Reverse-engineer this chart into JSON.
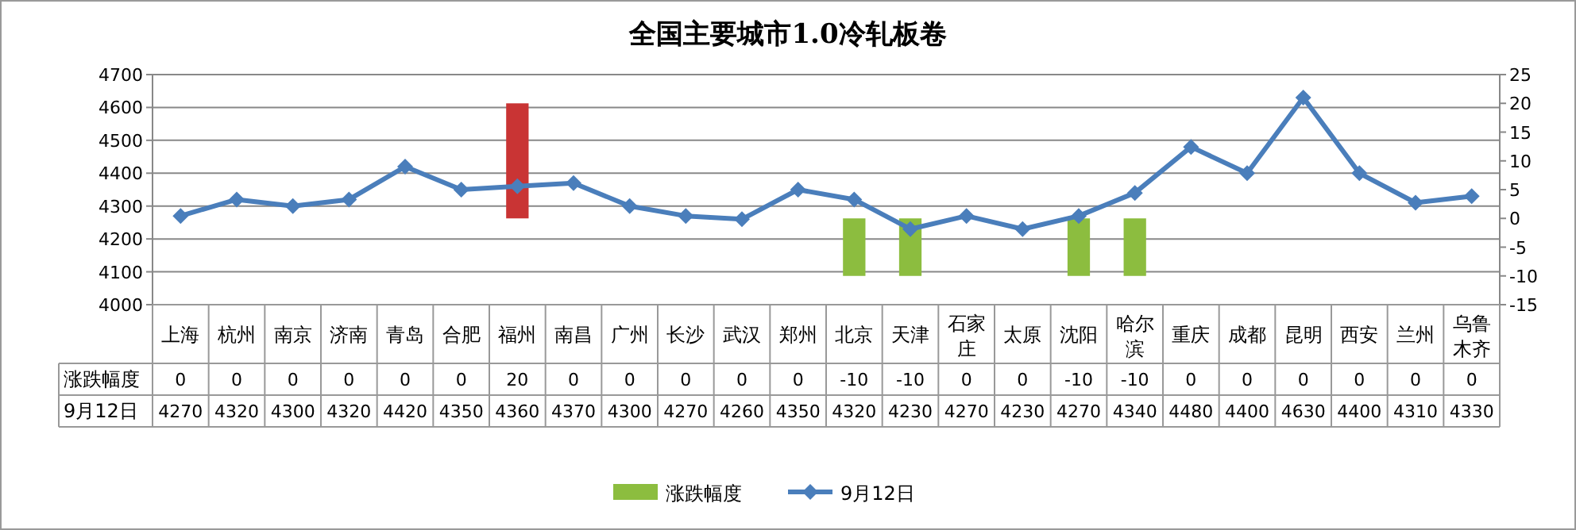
{
  "chart_data": {
    "type": "bar",
    "title": "全国主要城市1.0冷轧板卷",
    "categories": [
      "上海",
      "杭州",
      "南京",
      "济南",
      "青岛",
      "合肥",
      "福州",
      "南昌",
      "广州",
      "长沙",
      "武汉",
      "郑州",
      "北京",
      "天津",
      "石家庄",
      "太原",
      "沈阳",
      "哈尔滨",
      "重庆",
      "成都",
      "昆明",
      "西安",
      "兰州",
      "乌鲁木齐"
    ],
    "series": [
      {
        "name": "涨跌幅度",
        "axis": "y2",
        "color": "#8cbd3f",
        "colors": [
          "#8cbd3f",
          "#8cbd3f",
          "#8cbd3f",
          "#8cbd3f",
          "#8cbd3f",
          "#8cbd3f",
          "#c93434",
          "#8cbd3f",
          "#8cbd3f",
          "#8cbd3f",
          "#8cbd3f",
          "#8cbd3f",
          "#8cbd3f",
          "#8cbd3f",
          "#8cbd3f",
          "#8cbd3f",
          "#8cbd3f",
          "#8cbd3f",
          "#8cbd3f",
          "#8cbd3f",
          "#8cbd3f",
          "#8cbd3f",
          "#8cbd3f",
          "#8cbd3f"
        ],
        "values": [
          0,
          0,
          0,
          0,
          0,
          0,
          20,
          0,
          0,
          0,
          0,
          0,
          -10,
          -10,
          0,
          0,
          -10,
          -10,
          0,
          0,
          0,
          0,
          0,
          0
        ]
      },
      {
        "name": "9月12日",
        "type": "line",
        "color": "#4a7ebb",
        "values": [
          4270,
          4320,
          4300,
          4320,
          4420,
          4350,
          4360,
          4370,
          4300,
          4270,
          4260,
          4350,
          4320,
          4230,
          4270,
          4230,
          4270,
          4340,
          4480,
          4400,
          4630,
          4400,
          4310,
          4330
        ]
      }
    ],
    "ylim": [
      4000,
      4700
    ],
    "yticks": [
      4000,
      4100,
      4200,
      4300,
      4400,
      4500,
      4600,
      4700
    ],
    "y2lim": [
      -15,
      25
    ],
    "y2ticks": [
      -15,
      -10,
      -5,
      0,
      5,
      10,
      15,
      20,
      25
    ],
    "grid": "y",
    "legend": "bottom",
    "marker": "diamond",
    "line_style": "solid",
    "data_labels": true
  }
}
